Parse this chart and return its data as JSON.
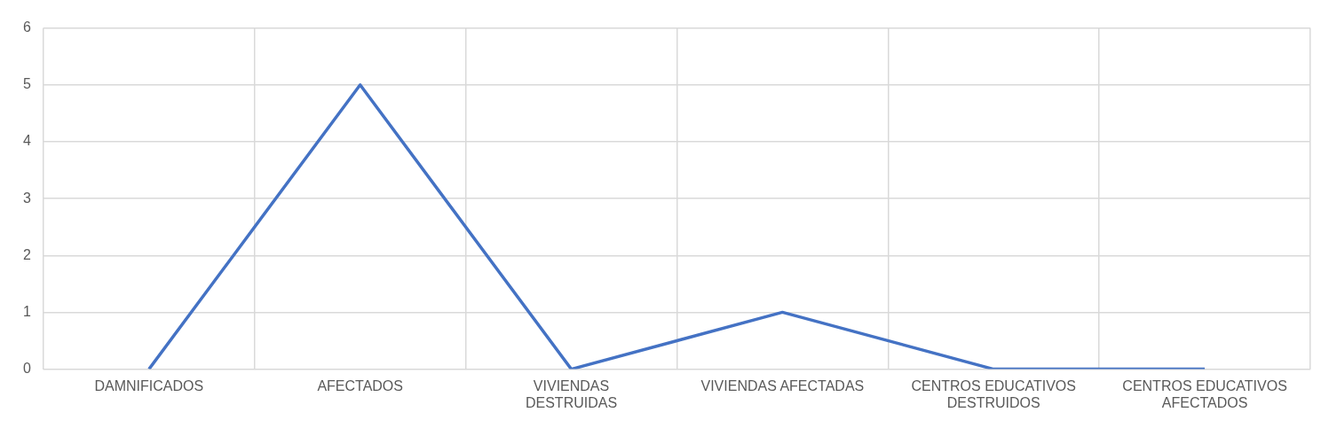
{
  "chart_data": {
    "type": "line",
    "categories": [
      "DAMNIFICADOS",
      "AFECTADOS",
      "VIVIENDAS DESTRUIDAS",
      "VIVIENDAS AFECTADAS",
      "CENTROS EDUCATIVOS DESTRUIDOS",
      "CENTROS EDUCATIVOS AFECTADOS"
    ],
    "series": [
      {
        "color": "#4472c4",
        "values": [
          0,
          5,
          0,
          1,
          0,
          0
        ]
      }
    ],
    "ylim": [
      0,
      6
    ],
    "yticks": [
      0,
      1,
      2,
      3,
      4,
      5,
      6
    ],
    "grid": true,
    "legend": false,
    "marker": "none",
    "line_style": "solid"
  }
}
